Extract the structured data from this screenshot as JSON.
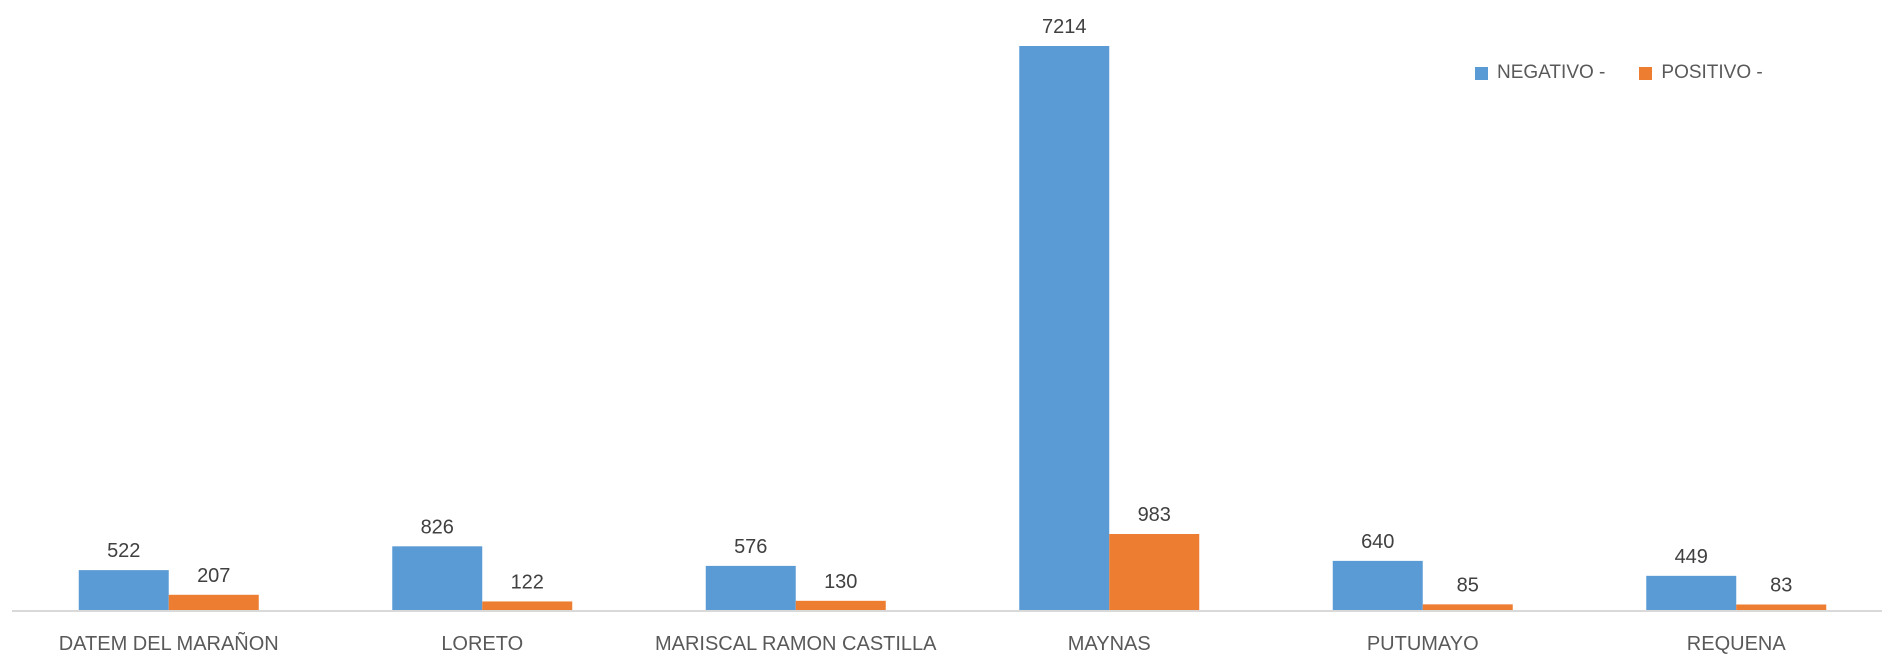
{
  "chart_data": {
    "type": "bar",
    "categories": [
      "DATEM DEL MARAÑON",
      "LORETO",
      "MARISCAL RAMON CASTILLA",
      "MAYNAS",
      "PUTUMAYO",
      "REQUENA"
    ],
    "series": [
      {
        "name": "NEGATIVO -",
        "values": [
          522,
          826,
          576,
          7214,
          640,
          449
        ],
        "color": "#5B9BD5"
      },
      {
        "name": "POSITIVO -",
        "values": [
          207,
          122,
          130,
          983,
          85,
          83
        ],
        "color": "#ED7D31"
      }
    ],
    "ylim": [
      0,
      7214
    ],
    "grid": false,
    "legend": "top-right",
    "data_labels": true
  }
}
